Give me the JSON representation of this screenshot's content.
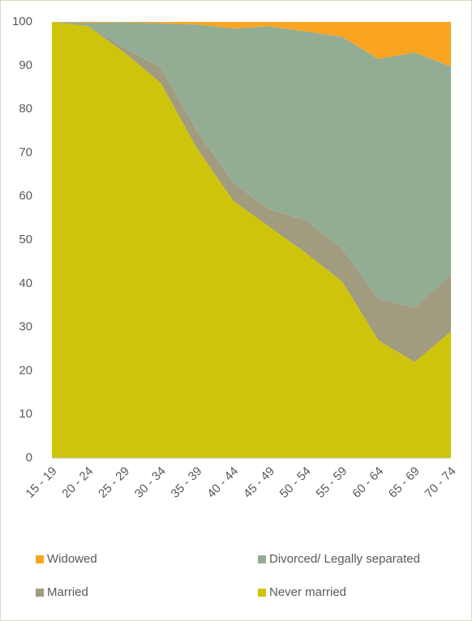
{
  "chart_data": {
    "type": "area",
    "stacked": true,
    "categories": [
      "15 - 19",
      "20 - 24",
      "25 - 29",
      "30 - 34",
      "35 - 39",
      "40 - 44",
      "45 - 49",
      "50 - 54",
      "55 - 59",
      "60 - 64",
      "65 - 69",
      "70 - 74"
    ],
    "series": [
      {
        "name": "Never married",
        "color": "#cfc40c",
        "values": [
          100,
          99,
          93,
          86,
          71,
          59,
          53,
          47,
          40.5,
          27,
          22,
          29
        ]
      },
      {
        "name": "Married",
        "color": "#a19b7f",
        "values": [
          0,
          0,
          1,
          3.5,
          4,
          4,
          4,
          7.5,
          7.5,
          9.5,
          12.5,
          13
        ]
      },
      {
        "name": "Divorced/ Legally separated",
        "color": "#93ad95",
        "values": [
          0,
          0.8,
          5.9,
          10.2,
          24.4,
          35.5,
          42,
          43.3,
          48.6,
          55,
          58.5,
          47.8
        ]
      },
      {
        "name": "Widowed",
        "color": "#f9a521",
        "values": [
          0,
          0.2,
          0.1,
          0.3,
          0.6,
          1.5,
          1,
          2.2,
          3.4,
          8.5,
          7,
          10.2
        ]
      }
    ],
    "ylim": [
      0,
      100
    ],
    "yticks": [
      0,
      10,
      20,
      30,
      40,
      50,
      60,
      70,
      80,
      90,
      100
    ],
    "grid": false
  }
}
